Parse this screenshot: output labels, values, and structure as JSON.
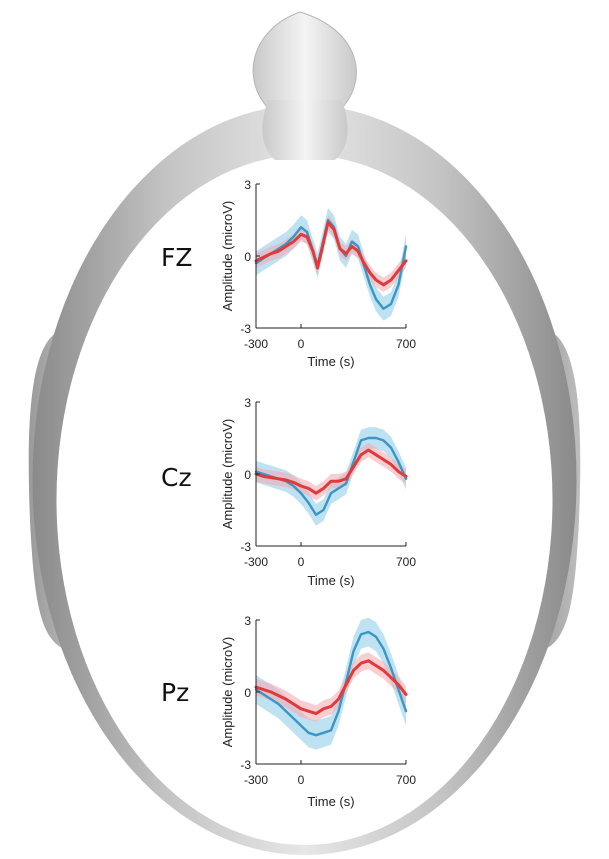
{
  "colors": {
    "series_a_line": "#3a96c4",
    "series_a_band": "#a9d8ee",
    "series_b_line": "#e23a3a",
    "series_b_band": "#f2aeb4",
    "head_fill": "#a8a8a8",
    "head_light": "#e8e8e8"
  },
  "chart_data": [
    {
      "type": "line",
      "electrode": "FZ",
      "xlabel": "Time (s)",
      "ylabel": "Amplitude (microV)",
      "xlim": [
        -300,
        700
      ],
      "ylim": [
        -3,
        3
      ],
      "xticks": [
        "-300",
        "0",
        "700"
      ],
      "yticks": [
        "3",
        "0",
        "-3"
      ],
      "x": [
        -300,
        -250,
        -200,
        -150,
        -100,
        -50,
        0,
        40,
        80,
        110,
        140,
        180,
        220,
        260,
        300,
        340,
        380,
        420,
        460,
        500,
        550,
        600,
        650,
        700
      ],
      "series": [
        {
          "values": [
            -0.3,
            -0.1,
            0.1,
            0.3,
            0.5,
            0.8,
            1.2,
            1.0,
            0.2,
            -0.4,
            0.4,
            1.5,
            1.2,
            0.3,
            0.0,
            0.6,
            0.4,
            -0.4,
            -1.2,
            -1.8,
            -2.2,
            -2.0,
            -1.2,
            0.4
          ],
          "band": 0.5
        },
        {
          "values": [
            -0.2,
            -0.05,
            0.1,
            0.2,
            0.4,
            0.6,
            0.9,
            0.8,
            0.2,
            -0.5,
            0.3,
            1.4,
            1.1,
            0.3,
            0.1,
            0.4,
            0.2,
            -0.3,
            -0.7,
            -1.0,
            -1.2,
            -1.0,
            -0.6,
            -0.2
          ],
          "band": 0.3
        }
      ]
    },
    {
      "type": "line",
      "electrode": "Cz",
      "xlabel": "Time (s)",
      "ylabel": "Amplitude (microV)",
      "xlim": [
        -300,
        700
      ],
      "ylim": [
        -3,
        3
      ],
      "xticks": [
        "-300",
        "0",
        "700"
      ],
      "yticks": [
        "3",
        "0",
        "-3"
      ],
      "x": [
        -300,
        -250,
        -200,
        -150,
        -100,
        -50,
        0,
        50,
        100,
        150,
        200,
        250,
        300,
        350,
        400,
        450,
        500,
        550,
        600,
        650,
        700
      ],
      "series": [
        {
          "values": [
            0.1,
            0.0,
            -0.1,
            -0.2,
            -0.3,
            -0.5,
            -0.8,
            -1.2,
            -1.7,
            -1.5,
            -0.8,
            -0.6,
            -0.4,
            0.5,
            1.4,
            1.5,
            1.5,
            1.4,
            1.1,
            0.5,
            -0.2
          ],
          "band": 0.45
        },
        {
          "values": [
            0.0,
            -0.1,
            -0.15,
            -0.2,
            -0.25,
            -0.35,
            -0.5,
            -0.6,
            -0.8,
            -0.6,
            -0.3,
            -0.3,
            -0.2,
            0.3,
            0.8,
            1.0,
            0.8,
            0.6,
            0.4,
            0.1,
            -0.1
          ],
          "band": 0.3
        }
      ]
    },
    {
      "type": "line",
      "electrode": "Pz",
      "xlabel": "Time (s)",
      "ylabel": "Amplitude (microV)",
      "xlim": [
        -300,
        700
      ],
      "ylim": [
        -3,
        3
      ],
      "xticks": [
        "-300",
        "0",
        "700"
      ],
      "yticks": [
        "3",
        "0",
        "-3"
      ],
      "x": [
        -300,
        -250,
        -200,
        -150,
        -100,
        -50,
        0,
        50,
        100,
        150,
        200,
        250,
        300,
        350,
        400,
        450,
        500,
        550,
        600,
        650,
        700
      ],
      "series": [
        {
          "values": [
            0.1,
            -0.1,
            -0.3,
            -0.5,
            -0.8,
            -1.1,
            -1.4,
            -1.7,
            -1.8,
            -1.7,
            -1.6,
            -0.8,
            0.4,
            1.7,
            2.4,
            2.5,
            2.3,
            1.8,
            1.0,
            0.1,
            -0.8
          ],
          "band": 0.6
        },
        {
          "values": [
            0.2,
            0.1,
            0.0,
            -0.15,
            -0.3,
            -0.5,
            -0.7,
            -0.8,
            -0.9,
            -0.7,
            -0.6,
            -0.3,
            0.3,
            0.9,
            1.2,
            1.3,
            1.1,
            0.9,
            0.6,
            0.3,
            -0.1
          ],
          "band": 0.35
        }
      ]
    }
  ]
}
